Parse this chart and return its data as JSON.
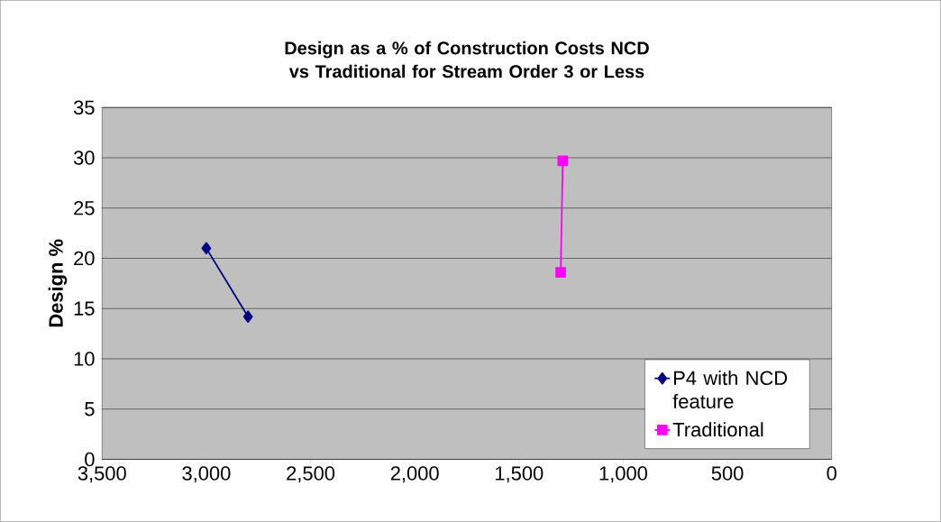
{
  "chart_data": {
    "type": "line",
    "title": "Design as a % of Construction Costs NCD vs Traditional for Stream Order 3 or Less",
    "ylabel": "Design %",
    "xlim": [
      3500,
      0
    ],
    "xticks": [
      {
        "value": 3500,
        "label": "3,500"
      },
      {
        "value": 3000,
        "label": "3,000"
      },
      {
        "value": 2500,
        "label": "2,500"
      },
      {
        "value": 2000,
        "label": "2,000"
      },
      {
        "value": 1500,
        "label": "1,500"
      },
      {
        "value": 1000,
        "label": "1,000"
      },
      500,
      0
    ],
    "ylim": [
      0,
      35
    ],
    "yticks": [
      0,
      5,
      10,
      15,
      20,
      25,
      30,
      35
    ],
    "grid": "y",
    "legend": "bottom right",
    "series": [
      {
        "name": "P4 with NCD feature",
        "color": "#000080",
        "marker": "diamond",
        "x": [
          3000,
          2800
        ],
        "values": [
          21.0,
          14.2
        ]
      },
      {
        "name": "Traditional",
        "color": "#ff00ff",
        "marker": "square",
        "x": [
          1290,
          1300
        ],
        "values": [
          29.7,
          18.6
        ]
      }
    ]
  }
}
